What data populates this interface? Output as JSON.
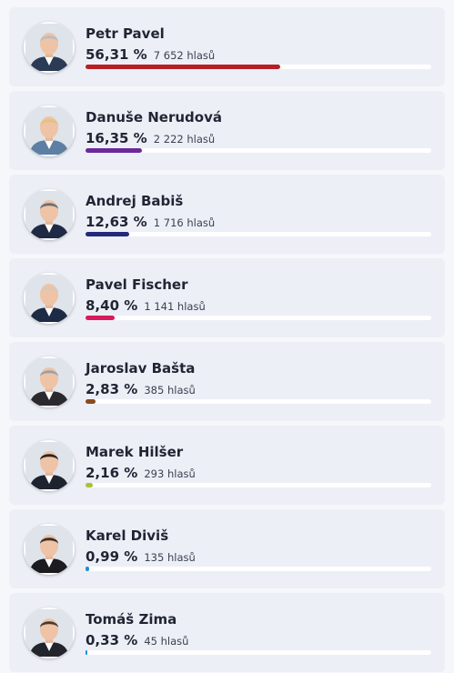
{
  "candidates": [
    {
      "name": "Petr Pavel",
      "percent": "56,31 %",
      "votes": "7 652 hlasů",
      "share": 56.31,
      "color": "#b61f25",
      "hair": "#b9bcc2",
      "jacket": "#2b3a55"
    },
    {
      "name": "Danuše Nerudová",
      "percent": "16,35 %",
      "votes": "2 222 hlasů",
      "share": 16.35,
      "color": "#6a2a9b",
      "hair": "#e2c27d",
      "jacket": "#5d7fa3"
    },
    {
      "name": "Andrej Babiš",
      "percent": "12,63 %",
      "votes": "1 716 hlasů",
      "share": 12.63,
      "color": "#24297a",
      "hair": "#6b6e74",
      "jacket": "#1f2a44"
    },
    {
      "name": "Pavel Fischer",
      "percent": "8,40 %",
      "votes": "1 141 hlasů",
      "share": 8.4,
      "color": "#d81b5d",
      "hair": "#d9c8b8",
      "jacket": "#1e2b44"
    },
    {
      "name": "Jaroslav Bašta",
      "percent": "2,83 %",
      "votes": "385 hlasů",
      "share": 2.83,
      "color": "#8b4a1c",
      "hair": "#9aa0a6",
      "jacket": "#2a2a2e"
    },
    {
      "name": "Marek Hilšer",
      "percent": "2,16 %",
      "votes": "293 hlasů",
      "share": 2.16,
      "color": "#a8c236",
      "hair": "#2a2420",
      "jacket": "#1e2330"
    },
    {
      "name": "Karel Diviš",
      "percent": "0,99 %",
      "votes": "135 hlasů",
      "share": 0.99,
      "color": "#1e8fd8",
      "hair": "#3a3028",
      "jacket": "#1c1c20"
    },
    {
      "name": "Tomáš Zima",
      "percent": "0,33 %",
      "votes": "45 hlasů",
      "share": 0.33,
      "color": "#1e8fd8",
      "hair": "#4a3a30",
      "jacket": "#22252c"
    }
  ]
}
